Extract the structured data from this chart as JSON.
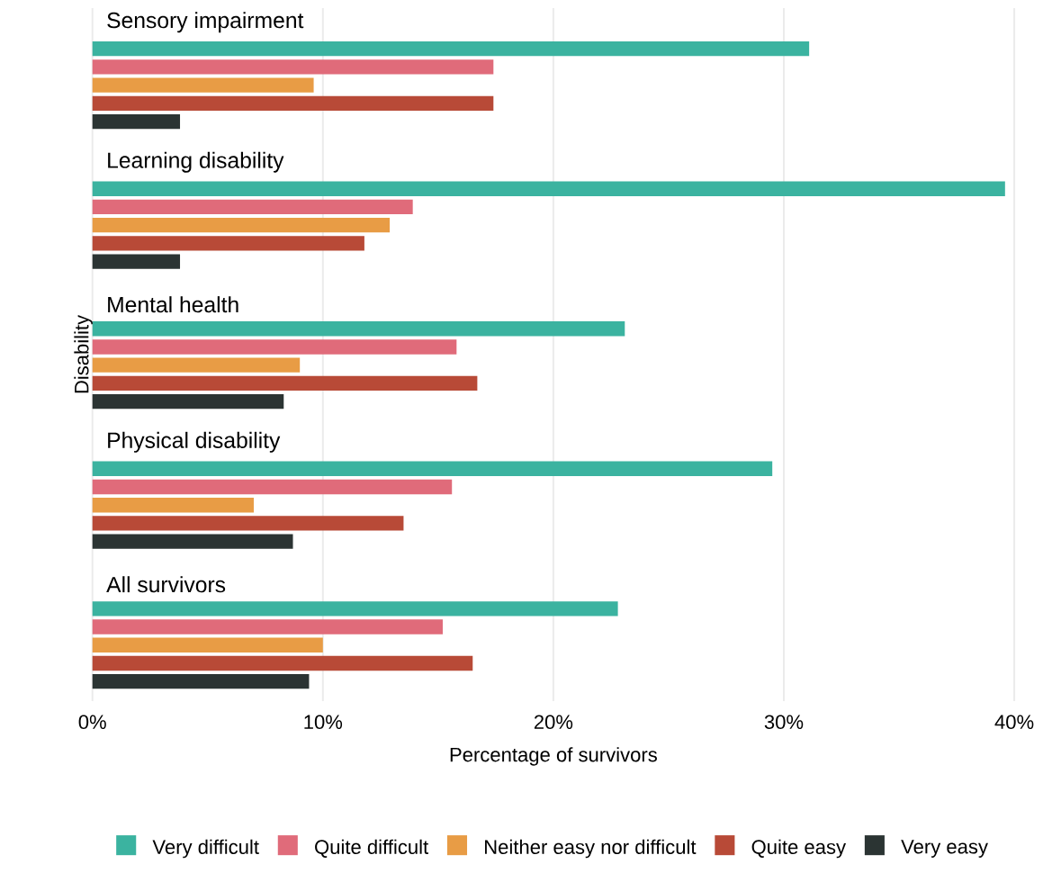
{
  "chart_data": {
    "type": "bar",
    "orientation": "horizontal",
    "categories": [
      "Sensory impairment",
      "Learning disability",
      "Mental health",
      "Physical disability",
      "All survivors"
    ],
    "series": [
      {
        "name": "Very difficult",
        "color": "#3bb3a0",
        "values": [
          31.1,
          39.6,
          23.1,
          29.5,
          22.8
        ]
      },
      {
        "name": "Quite difficult",
        "color": "#e06b7a",
        "values": [
          17.4,
          13.9,
          15.8,
          15.6,
          15.2
        ]
      },
      {
        "name": "Neither easy nor difficult",
        "color": "#e89c45",
        "values": [
          9.6,
          12.9,
          9.0,
          7.0,
          10.0
        ]
      },
      {
        "name": "Quite easy",
        "color": "#b84a37",
        "values": [
          17.4,
          11.8,
          16.7,
          13.5,
          16.5
        ]
      },
      {
        "name": "Very easy",
        "color": "#2b3433",
        "values": [
          3.8,
          3.8,
          8.3,
          8.7,
          9.4
        ]
      }
    ],
    "xlim": [
      0,
      40
    ],
    "xticks": [
      {
        "value": 0,
        "label": "0%"
      },
      {
        "value": 10,
        "label": "10%"
      },
      {
        "value": 20,
        "label": "20%"
      },
      {
        "value": 30,
        "label": "30%"
      },
      {
        "value": 40,
        "label": "40%"
      }
    ],
    "xlabel": "Percentage of survivors",
    "ylabel": "Disability",
    "grid": "x",
    "legend": "bottom"
  }
}
